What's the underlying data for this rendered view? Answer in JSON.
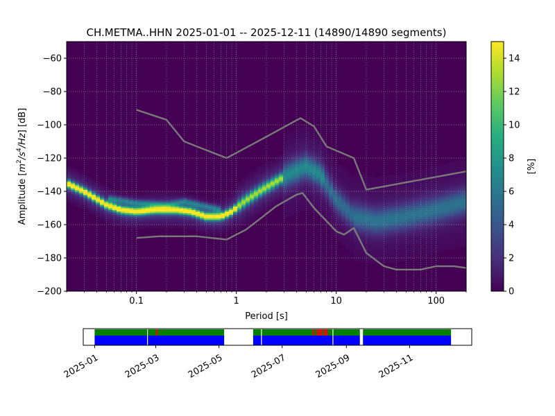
{
  "chart_data": [
    {
      "type": "heatmap",
      "title": "CH.METMA..HHN   2025-01-01 -- 2025-12-11  (14890/14890 segments)",
      "xlabel": "Period [s]",
      "ylabel_parts": {
        "prefix": "Amplitude [",
        "m": "m",
        "exp2": "2",
        "s": "/s",
        "exp4": "4",
        "hz": "/Hz",
        "suffix": "] [dB]"
      },
      "x_scale": "log",
      "xlim": [
        0.02,
        200
      ],
      "ylim": [
        -200,
        -50
      ],
      "x_ticks": [
        {
          "value": 0.1,
          "label": "0.1"
        },
        {
          "value": 1,
          "label": "1"
        },
        {
          "value": 10,
          "label": "10"
        },
        {
          "value": 100,
          "label": "100"
        }
      ],
      "y_ticks": [
        {
          "value": -60,
          "label": "−60"
        },
        {
          "value": -80,
          "label": "−80"
        },
        {
          "value": -100,
          "label": "−100"
        },
        {
          "value": -120,
          "label": "−120"
        },
        {
          "value": -140,
          "label": "−140"
        },
        {
          "value": -160,
          "label": "−160"
        },
        {
          "value": -180,
          "label": "−180"
        },
        {
          "value": -200,
          "label": "−200"
        }
      ],
      "grid": true,
      "colormap": "viridis",
      "colorbar": {
        "label": "[%]",
        "range": [
          0,
          15
        ],
        "ticks": [
          {
            "value": 0,
            "label": "0"
          },
          {
            "value": 2,
            "label": "2"
          },
          {
            "value": 4,
            "label": "4"
          },
          {
            "value": 6,
            "label": "6"
          },
          {
            "value": 8,
            "label": "8"
          },
          {
            "value": 10,
            "label": "10"
          },
          {
            "value": 12,
            "label": "12"
          },
          {
            "value": 14,
            "label": "14"
          }
        ]
      },
      "mode_curve": [
        {
          "period": 0.02,
          "db": -135
        },
        {
          "period": 0.03,
          "db": -140
        },
        {
          "period": 0.05,
          "db": -148
        },
        {
          "period": 0.07,
          "db": -151
        },
        {
          "period": 0.1,
          "db": -152
        },
        {
          "period": 0.15,
          "db": -151
        },
        {
          "period": 0.25,
          "db": -151
        },
        {
          "period": 0.35,
          "db": -152
        },
        {
          "period": 0.5,
          "db": -155
        },
        {
          "period": 0.7,
          "db": -155
        },
        {
          "period": 0.9,
          "db": -152
        },
        {
          "period": 1.2,
          "db": -146
        },
        {
          "period": 1.8,
          "db": -139
        },
        {
          "period": 2.5,
          "db": -134
        },
        {
          "period": 3.5,
          "db": -129
        },
        {
          "period": 5,
          "db": -125
        },
        {
          "period": 7,
          "db": -130
        },
        {
          "period": 10,
          "db": -145
        },
        {
          "period": 15,
          "db": -155
        },
        {
          "period": 25,
          "db": -158
        },
        {
          "period": 50,
          "db": -155
        },
        {
          "period": 100,
          "db": -151
        },
        {
          "period": 200,
          "db": -146
        }
      ],
      "secondary_band": [
        {
          "period": 0.05,
          "db": -144
        },
        {
          "period": 0.1,
          "db": -147
        },
        {
          "period": 0.2,
          "db": -148
        },
        {
          "period": 0.3,
          "db": -146
        },
        {
          "period": 0.5,
          "db": -149
        },
        {
          "period": 0.7,
          "db": -151
        }
      ],
      "series": [
        {
          "values": [
            {
              "period": 0.1,
              "db": -91
            },
            {
              "period": 0.2,
              "db": -97
            },
            {
              "period": 0.3,
              "db": -110
            },
            {
              "period": 0.8,
              "db": -120
            },
            {
              "period": 2.5,
              "db": -104
            },
            {
              "period": 3.8,
              "db": -98
            },
            {
              "period": 4.4,
              "db": -96
            },
            {
              "period": 6.0,
              "db": -101
            },
            {
              "period": 8.0,
              "db": -113
            },
            {
              "period": 15,
              "db": -120
            },
            {
              "period": 20,
              "db": -139
            },
            {
              "period": 200,
              "db": -128
            }
          ]
        },
        {
          "values": [
            {
              "period": 0.1,
              "db": -168
            },
            {
              "period": 0.17,
              "db": -167
            },
            {
              "period": 0.4,
              "db": -167
            },
            {
              "period": 0.8,
              "db": -169
            },
            {
              "period": 1.25,
              "db": -163
            },
            {
              "period": 2.5,
              "db": -149
            },
            {
              "period": 4.0,
              "db": -142
            },
            {
              "period": 4.6,
              "db": -141
            },
            {
              "period": 6.0,
              "db": -150
            },
            {
              "period": 10,
              "db": -164
            },
            {
              "period": 12,
              "db": -166
            },
            {
              "period": 15,
              "db": -162
            },
            {
              "period": 20,
              "db": -177
            },
            {
              "period": 30,
              "db": -185
            },
            {
              "period": 40,
              "db": -187
            },
            {
              "period": 70,
              "db": -187
            },
            {
              "period": 100,
              "db": -185
            },
            {
              "period": 150,
              "db": -185
            },
            {
              "period": 200,
              "db": -186
            }
          ]
        }
      ]
    },
    {
      "type": "timeline",
      "x_ticks": [
        "2025-01",
        "2025-03",
        "2025-05",
        "2025-07",
        "2025-09",
        "2025-11"
      ],
      "data_coverage": [
        {
          "start": "2025-01-01",
          "end": "2025-05-06"
        },
        {
          "start": "2025-06-03",
          "end": "2025-09-14"
        },
        {
          "start": "2025-09-17",
          "end": "2025-12-11"
        }
      ],
      "gaps": [
        "2025-02-21",
        "2025-06-11",
        "2025-08-19"
      ],
      "flags": [
        "2025-03-02",
        "2025-07-31",
        "2025-08-04",
        "2025-08-06",
        "2025-08-08",
        "2025-08-11",
        "2025-08-13"
      ],
      "colors": {
        "ok": "#008000",
        "data": "#0000ff",
        "flag": "#ff0000"
      }
    }
  ]
}
